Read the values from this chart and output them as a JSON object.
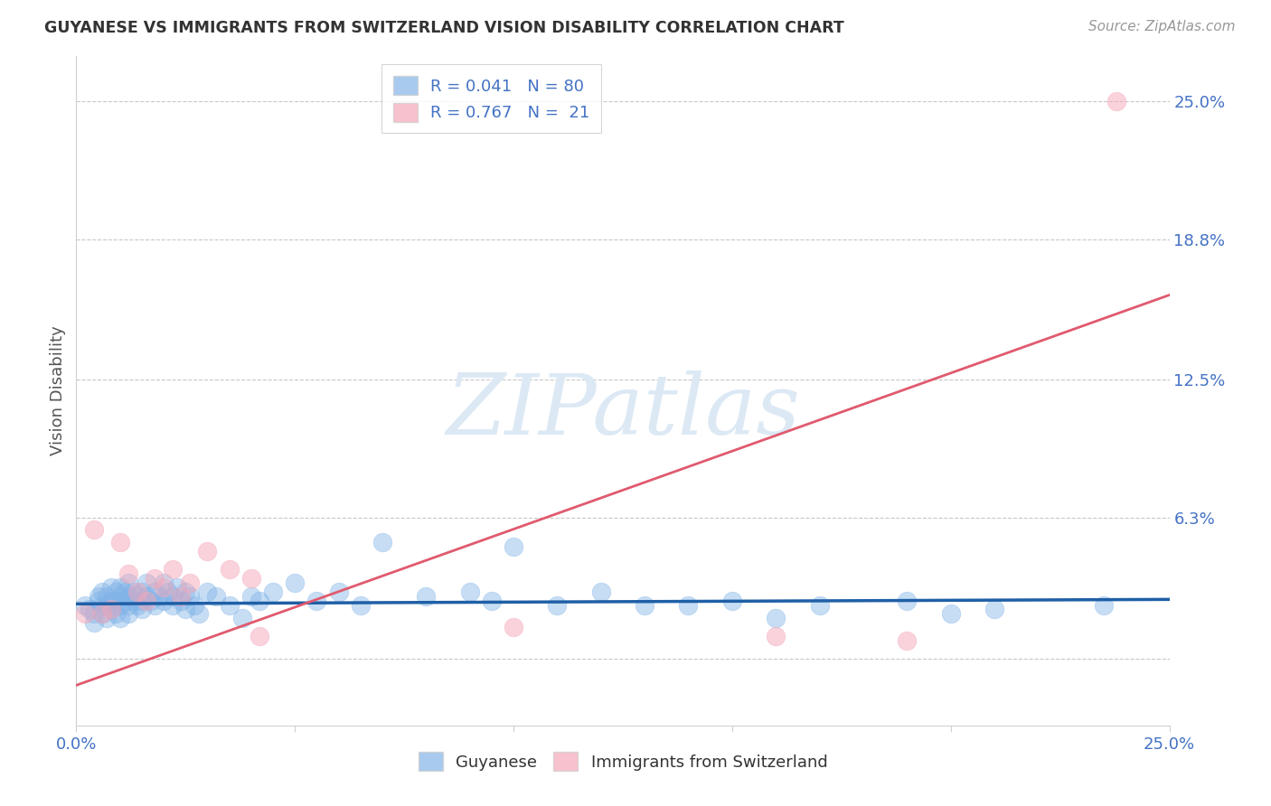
{
  "title": "GUYANESE VS IMMIGRANTS FROM SWITZERLAND VISION DISABILITY CORRELATION CHART",
  "source": "Source: ZipAtlas.com",
  "ylabel": "Vision Disability",
  "xlim": [
    0.0,
    0.25
  ],
  "ylim": [
    -0.03,
    0.27
  ],
  "ytick_values": [
    0.0,
    0.063,
    0.125,
    0.188,
    0.25
  ],
  "ytick_labels": [
    "0.0%",
    "6.3%",
    "12.5%",
    "18.8%",
    "25.0%"
  ],
  "xtick_values": [
    0.0,
    0.05,
    0.1,
    0.15,
    0.2,
    0.25
  ],
  "xtick_labels": [
    "0.0%",
    "",
    "",
    "",
    "",
    "25.0%"
  ],
  "legend_r1": "R = 0.041",
  "legend_n1": "N = 80",
  "legend_r2": "R = 0.767",
  "legend_n2": "N =  21",
  "blue_scatter_color": "#82b4e8",
  "pink_scatter_color": "#f4a7b9",
  "blue_line_color": "#1f5fa6",
  "pink_line_color": "#e05a6e",
  "grid_color": "#c8c8c8",
  "spine_color": "#d0d0d0",
  "tick_label_color": "#4472c4",
  "title_color": "#333333",
  "source_color": "#999999",
  "ylabel_color": "#555555",
  "watermark_text": "ZIPatlas",
  "watermark_color": "#dce9f5",
  "background_color": "#ffffff",
  "legend_edge_color": "#cccccc",
  "bottom_legend_labels": [
    "Guyanese",
    "Immigrants from Switzerland"
  ],
  "guyanese_points": [
    [
      0.002,
      0.024
    ],
    [
      0.003,
      0.022
    ],
    [
      0.004,
      0.02
    ],
    [
      0.004,
      0.016
    ],
    [
      0.005,
      0.028
    ],
    [
      0.005,
      0.026
    ],
    [
      0.006,
      0.03
    ],
    [
      0.006,
      0.024
    ],
    [
      0.006,
      0.02
    ],
    [
      0.007,
      0.028
    ],
    [
      0.007,
      0.024
    ],
    [
      0.007,
      0.018
    ],
    [
      0.008,
      0.032
    ],
    [
      0.008,
      0.026
    ],
    [
      0.008,
      0.022
    ],
    [
      0.009,
      0.03
    ],
    [
      0.009,
      0.026
    ],
    [
      0.009,
      0.02
    ],
    [
      0.01,
      0.032
    ],
    [
      0.01,
      0.028
    ],
    [
      0.01,
      0.024
    ],
    [
      0.01,
      0.018
    ],
    [
      0.011,
      0.03
    ],
    [
      0.011,
      0.026
    ],
    [
      0.012,
      0.034
    ],
    [
      0.012,
      0.028
    ],
    [
      0.012,
      0.024
    ],
    [
      0.012,
      0.02
    ],
    [
      0.013,
      0.03
    ],
    [
      0.013,
      0.026
    ],
    [
      0.014,
      0.028
    ],
    [
      0.014,
      0.024
    ],
    [
      0.015,
      0.03
    ],
    [
      0.015,
      0.026
    ],
    [
      0.015,
      0.022
    ],
    [
      0.016,
      0.034
    ],
    [
      0.016,
      0.028
    ],
    [
      0.017,
      0.026
    ],
    [
      0.018,
      0.03
    ],
    [
      0.018,
      0.024
    ],
    [
      0.019,
      0.028
    ],
    [
      0.02,
      0.034
    ],
    [
      0.02,
      0.026
    ],
    [
      0.021,
      0.03
    ],
    [
      0.022,
      0.028
    ],
    [
      0.022,
      0.024
    ],
    [
      0.023,
      0.032
    ],
    [
      0.024,
      0.026
    ],
    [
      0.025,
      0.03
    ],
    [
      0.025,
      0.022
    ],
    [
      0.026,
      0.028
    ],
    [
      0.027,
      0.024
    ],
    [
      0.028,
      0.02
    ],
    [
      0.03,
      0.03
    ],
    [
      0.032,
      0.028
    ],
    [
      0.035,
      0.024
    ],
    [
      0.038,
      0.018
    ],
    [
      0.04,
      0.028
    ],
    [
      0.042,
      0.026
    ],
    [
      0.045,
      0.03
    ],
    [
      0.05,
      0.034
    ],
    [
      0.055,
      0.026
    ],
    [
      0.06,
      0.03
    ],
    [
      0.065,
      0.024
    ],
    [
      0.07,
      0.052
    ],
    [
      0.08,
      0.028
    ],
    [
      0.09,
      0.03
    ],
    [
      0.095,
      0.026
    ],
    [
      0.1,
      0.05
    ],
    [
      0.11,
      0.024
    ],
    [
      0.12,
      0.03
    ],
    [
      0.13,
      0.024
    ],
    [
      0.14,
      0.024
    ],
    [
      0.15,
      0.026
    ],
    [
      0.16,
      0.018
    ],
    [
      0.17,
      0.024
    ],
    [
      0.19,
      0.026
    ],
    [
      0.2,
      0.02
    ],
    [
      0.21,
      0.022
    ],
    [
      0.235,
      0.024
    ]
  ],
  "swiss_points": [
    [
      0.002,
      0.02
    ],
    [
      0.004,
      0.058
    ],
    [
      0.006,
      0.02
    ],
    [
      0.008,
      0.022
    ],
    [
      0.01,
      0.052
    ],
    [
      0.012,
      0.038
    ],
    [
      0.014,
      0.03
    ],
    [
      0.016,
      0.026
    ],
    [
      0.018,
      0.036
    ],
    [
      0.02,
      0.032
    ],
    [
      0.022,
      0.04
    ],
    [
      0.024,
      0.028
    ],
    [
      0.026,
      0.034
    ],
    [
      0.03,
      0.048
    ],
    [
      0.035,
      0.04
    ],
    [
      0.04,
      0.036
    ],
    [
      0.042,
      0.01
    ],
    [
      0.1,
      0.014
    ],
    [
      0.16,
      0.01
    ],
    [
      0.19,
      0.008
    ],
    [
      0.238,
      0.25
    ]
  ],
  "blue_trendline_x": [
    0.0,
    0.25
  ],
  "blue_trendline_y": [
    0.0245,
    0.0265
  ],
  "pink_trendline_x": [
    0.0,
    0.25
  ],
  "pink_trendline_y": [
    -0.012,
    0.163
  ]
}
